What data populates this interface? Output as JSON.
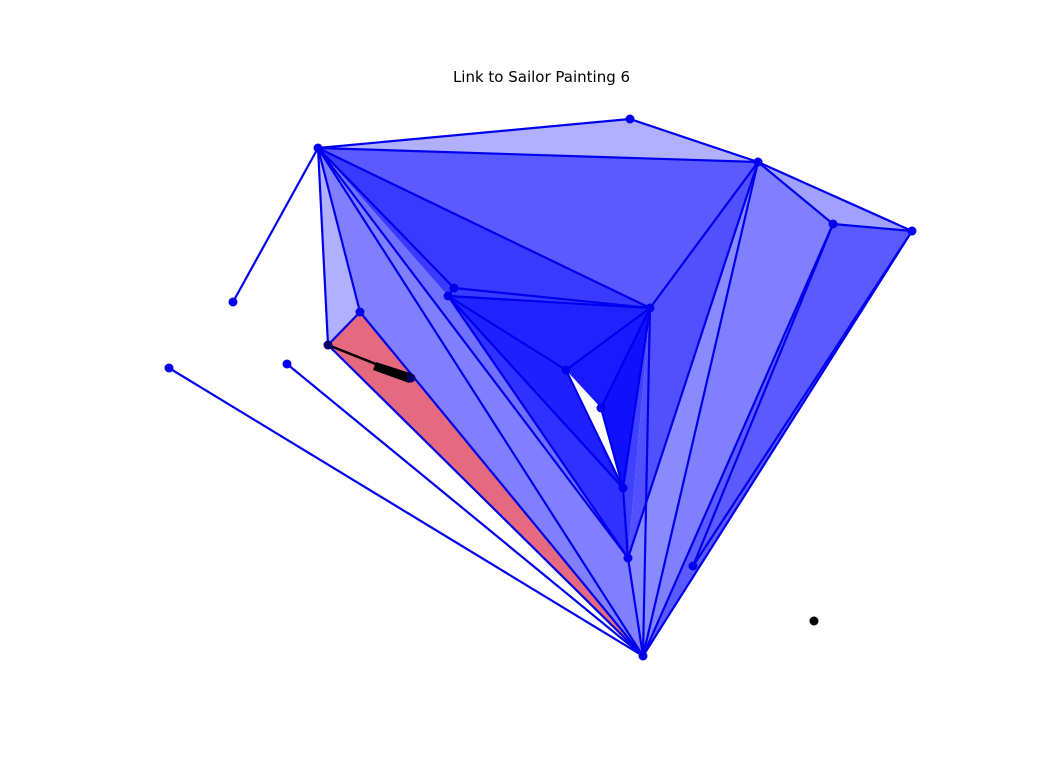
{
  "title": "Link to Sailor Painting 6",
  "colors": {
    "edge": "#0000ee",
    "node": "#0000ee",
    "fill": "#2020ff",
    "highlight_fill": "#e0506a",
    "pointer": "#000000",
    "background": "#ffffff"
  },
  "graph": {
    "node_count": 20,
    "edge_count": 33,
    "highlighted_face": "red-triangle",
    "pointer_target": "black-dot"
  }
}
